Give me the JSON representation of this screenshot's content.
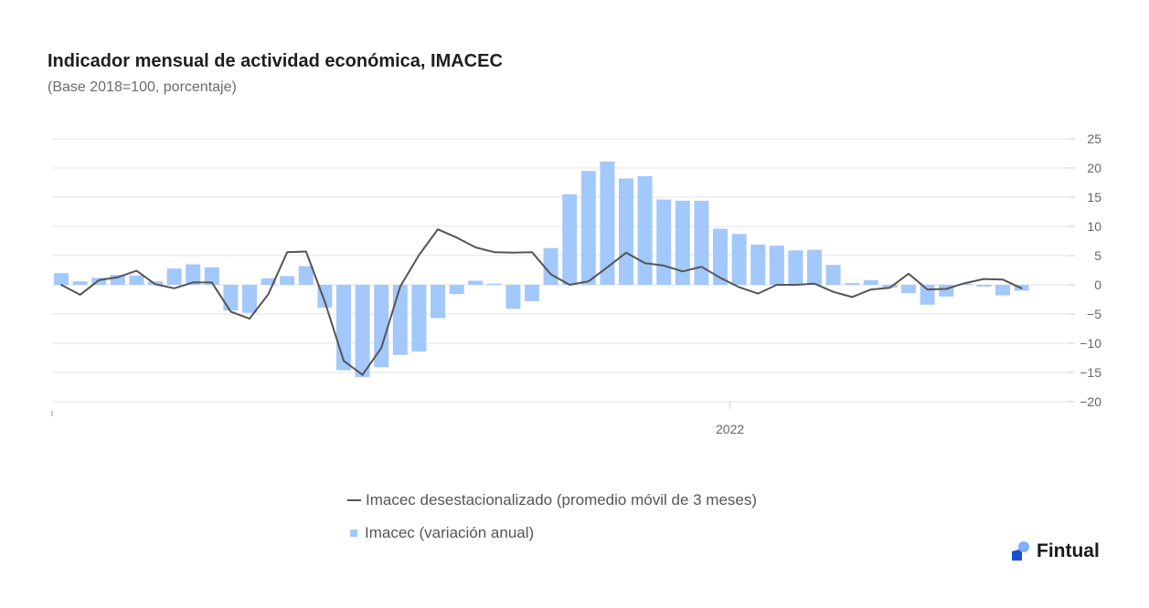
{
  "chart_data": {
    "type": "bar",
    "title": "Indicador mensual de actividad económica, IMACEC",
    "subtitle": "(Base 2018=100, porcentaje)",
    "ylim": [
      -20,
      25
    ],
    "yticks": [
      25,
      20,
      15,
      10,
      5,
      0,
      -5,
      -10,
      -15,
      -20
    ],
    "xtick_labels": [
      {
        "label": "2022",
        "index": 36
      }
    ],
    "series": [
      {
        "name": "Imacec (variación anual)",
        "type": "bar",
        "color": "#a3c8fb",
        "values": [
          2.0,
          0.6,
          1.2,
          1.7,
          1.6,
          0.6,
          2.8,
          3.5,
          3.0,
          -4.4,
          -4.8,
          1.1,
          1.5,
          3.2,
          -3.9,
          -14.6,
          -15.8,
          -14.1,
          -12.0,
          -11.4,
          -5.7,
          -1.6,
          0.7,
          0.2,
          -4.1,
          -2.8,
          6.3,
          15.5,
          19.5,
          21.1,
          18.2,
          18.6,
          14.6,
          14.4,
          14.4,
          9.6,
          8.7,
          6.9,
          6.7,
          5.9,
          6.0,
          3.4,
          0.3,
          0.8,
          -0.5,
          -1.4,
          -3.4,
          -2.0,
          0.2,
          -0.3,
          -1.8,
          -1.0
        ]
      },
      {
        "name": "Imacec desestacionalizado (promedio móvil de 3 meses)",
        "type": "line",
        "color": "#555555",
        "values": [
          0.0,
          -1.7,
          0.8,
          1.3,
          2.4,
          0.1,
          -0.6,
          0.4,
          0.4,
          -4.6,
          -5.8,
          -1.6,
          5.6,
          5.7,
          -2.9,
          -13.0,
          -15.4,
          -10.8,
          -0.3,
          5.1,
          9.5,
          8.1,
          6.4,
          5.6,
          5.5,
          5.6,
          1.8,
          0.0,
          0.6,
          3.0,
          5.5,
          3.7,
          3.3,
          2.3,
          3.1,
          1.2,
          -0.4,
          -1.5,
          0.0,
          0.0,
          0.2,
          -1.2,
          -2.1,
          -0.8,
          -0.5,
          1.9,
          -0.8,
          -0.7,
          0.3,
          1.0,
          0.9,
          -0.6
        ]
      }
    ],
    "legend_position": "bottom-center"
  },
  "brand": {
    "name": "Fintual",
    "color": "#2f6be0"
  }
}
